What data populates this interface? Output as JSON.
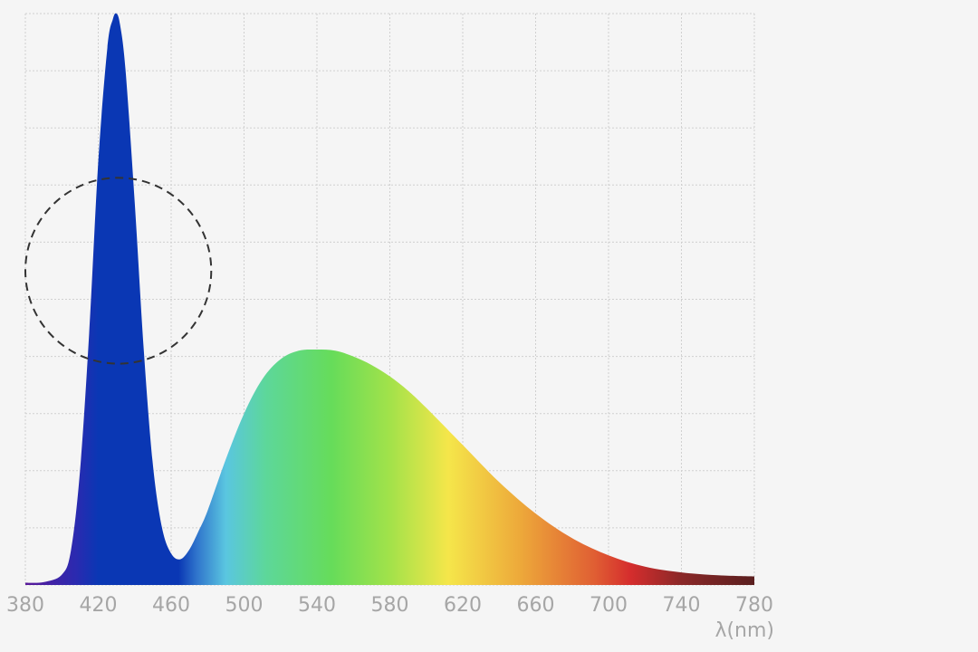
{
  "chart_data": {
    "type": "area",
    "title": "",
    "xlabel": "λ(nm)",
    "ylabel": "",
    "xlim": [
      380,
      780
    ],
    "ylim": [
      0,
      1
    ],
    "grid": true,
    "x_ticks": [
      "380",
      "420",
      "460",
      "500",
      "540",
      "580",
      "620",
      "660",
      "700",
      "740",
      "780"
    ],
    "series": [
      {
        "x": [
          380,
          390,
          400,
          405,
          410,
          415,
          420,
          425,
          428,
          430,
          432,
          435,
          440,
          445,
          450,
          455,
          460,
          465,
          470,
          475,
          480,
          490,
          500,
          510,
          520,
          530,
          540,
          550,
          560,
          570,
          580,
          590,
          600,
          620,
          640,
          660,
          680,
          700,
          720,
          740,
          760,
          780
        ],
        "y": [
          0.004,
          0.005,
          0.018,
          0.06,
          0.2,
          0.44,
          0.74,
          0.94,
          0.99,
          1.0,
          0.98,
          0.9,
          0.67,
          0.41,
          0.21,
          0.1,
          0.055,
          0.045,
          0.062,
          0.094,
          0.13,
          0.22,
          0.3,
          0.36,
          0.395,
          0.41,
          0.412,
          0.41,
          0.4,
          0.385,
          0.365,
          0.34,
          0.31,
          0.245,
          0.18,
          0.125,
          0.082,
          0.052,
          0.032,
          0.022,
          0.017,
          0.015
        ]
      }
    ],
    "annotation": {
      "shape": "dashed-circle",
      "center_x": 431,
      "center_y": 0.55,
      "radius_x_nm": 51
    },
    "colors": {
      "peak_blue": "#0a37b4",
      "outline": "#333333",
      "grid": "#d0d0d0",
      "background": "#f5f5f5"
    }
  }
}
